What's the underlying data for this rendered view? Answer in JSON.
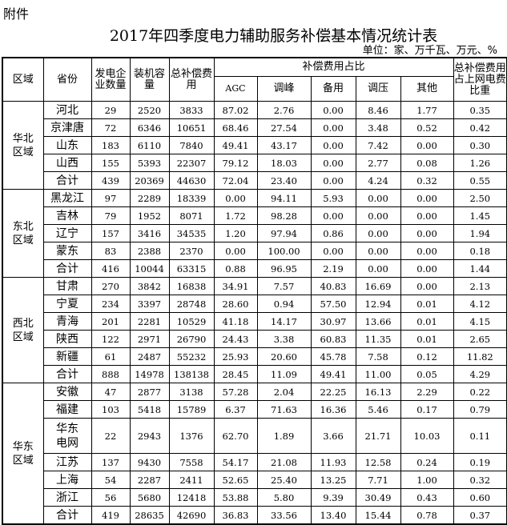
{
  "attachment_label": "附件",
  "title": "2017年四季度电力辅助服务补偿基本情况统计表",
  "unit": "单位：家、万千瓦、万元、%",
  "headers": {
    "region": "区域",
    "province": "省份",
    "companies": "发电企业数量",
    "capacity": "装机容量",
    "total_comp": "总补偿费用",
    "share_group": "补偿费用占比",
    "agc": "AGC",
    "peak": "调峰",
    "reserve": "备用",
    "voltage": "调压",
    "other": "其他",
    "ratio": "总补偿费用占上网电费比重"
  },
  "regions": [
    {
      "name": "华北区域",
      "rows": [
        [
          "河北",
          "29",
          "2520",
          "3833",
          "87.02",
          "2.76",
          "0.00",
          "8.46",
          "1.77",
          "0.35"
        ],
        [
          "京津唐",
          "72",
          "6346",
          "10651",
          "68.46",
          "27.54",
          "0.00",
          "3.48",
          "0.52",
          "0.42"
        ],
        [
          "山东",
          "183",
          "6110",
          "7840",
          "49.41",
          "43.17",
          "0.00",
          "7.42",
          "0.00",
          "0.30"
        ],
        [
          "山西",
          "155",
          "5393",
          "22307",
          "79.12",
          "18.03",
          "0.00",
          "2.77",
          "0.08",
          "1.26"
        ],
        [
          "合计",
          "439",
          "20369",
          "44630",
          "72.04",
          "23.40",
          "0.00",
          "4.24",
          "0.32",
          "0.55"
        ]
      ]
    },
    {
      "name": "东北区域",
      "rows": [
        [
          "黑龙江",
          "97",
          "2289",
          "18339",
          "0.00",
          "94.11",
          "5.93",
          "0.00",
          "0.00",
          "2.50"
        ],
        [
          "吉林",
          "79",
          "1952",
          "8071",
          "1.72",
          "98.28",
          "0.00",
          "0.00",
          "0.00",
          "1.45"
        ],
        [
          "辽宁",
          "157",
          "3416",
          "34535",
          "1.20",
          "97.94",
          "0.86",
          "0.00",
          "0.00",
          "1.94"
        ],
        [
          "蒙东",
          "83",
          "2388",
          "2370",
          "0.00",
          "100.00",
          "0.00",
          "0.00",
          "0.00",
          "0.18"
        ],
        [
          "合计",
          "416",
          "10044",
          "63315",
          "0.88",
          "96.95",
          "2.19",
          "0.00",
          "0.00",
          "1.44"
        ]
      ]
    },
    {
      "name": "西北区域",
      "rows": [
        [
          "甘肃",
          "270",
          "3842",
          "16838",
          "34.91",
          "7.57",
          "40.83",
          "16.69",
          "0.00",
          "2.13"
        ],
        [
          "宁夏",
          "234",
          "3397",
          "28748",
          "28.60",
          "0.94",
          "57.50",
          "12.94",
          "0.01",
          "4.12"
        ],
        [
          "青海",
          "201",
          "2281",
          "10529",
          "41.18",
          "14.17",
          "30.97",
          "13.66",
          "0.01",
          "4.15"
        ],
        [
          "陕西",
          "122",
          "2971",
          "26790",
          "24.43",
          "3.38",
          "60.83",
          "11.35",
          "0.01",
          "2.65"
        ],
        [
          "新疆",
          "61",
          "2487",
          "55232",
          "25.93",
          "20.60",
          "45.78",
          "7.58",
          "0.12",
          "11.82"
        ],
        [
          "合计",
          "888",
          "14978",
          "138138",
          "28.45",
          "11.09",
          "49.41",
          "11.00",
          "0.05",
          "4.29"
        ]
      ]
    },
    {
      "name": "华东区域",
      "rows": [
        [
          "安徽",
          "47",
          "2877",
          "3138",
          "57.28",
          "2.04",
          "22.25",
          "16.13",
          "2.29",
          "0.22"
        ],
        [
          "福建",
          "103",
          "5418",
          "15789",
          "6.37",
          "71.63",
          "16.36",
          "5.46",
          "0.17",
          "0.79"
        ],
        [
          "华东电网",
          "22",
          "2943",
          "1376",
          "62.70",
          "1.89",
          "3.66",
          "21.71",
          "10.03",
          "0.11"
        ],
        [
          "江苏",
          "137",
          "9430",
          "7558",
          "54.17",
          "21.08",
          "11.93",
          "12.58",
          "0.24",
          "0.19"
        ],
        [
          "上海",
          "54",
          "2287",
          "2411",
          "52.65",
          "25.40",
          "13.25",
          "7.71",
          "1.00",
          "0.32"
        ],
        [
          "浙江",
          "56",
          "5680",
          "12418",
          "53.88",
          "5.80",
          "9.39",
          "30.49",
          "0.43",
          "0.60"
        ],
        [
          "合计",
          "419",
          "28635",
          "42690",
          "36.83",
          "33.56",
          "13.40",
          "15.44",
          "0.78",
          "0.37"
        ]
      ]
    }
  ]
}
